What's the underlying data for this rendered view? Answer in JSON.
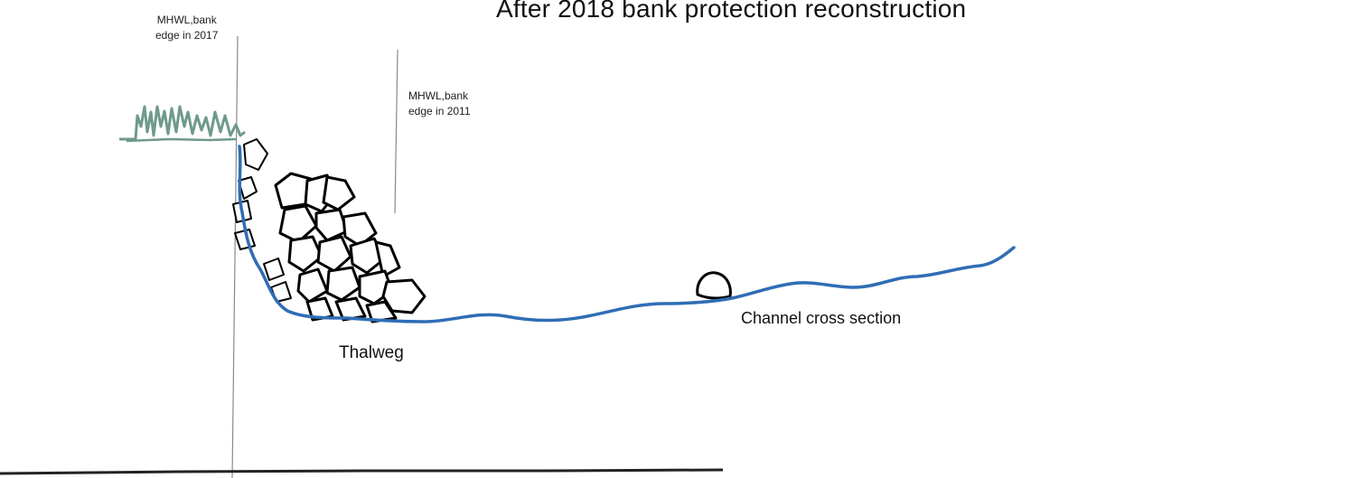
{
  "title": "After 2018 bank protection reconstruction",
  "labels": {
    "mhwl_2017_line1": "MHWL,bank",
    "mhwl_2017_line2": "edge in 2017",
    "mhwl_2011_line1": "MHWL,bank",
    "mhwl_2011_line2": "edge in 2011",
    "thalweg": "Thalweg",
    "channel_cross_section": "Channel cross section"
  },
  "colors": {
    "channel_profile": "#2f6db5",
    "vegetation": "#6f9a8a",
    "riprap_outline": "#000000",
    "reference_line": "#8a8a8a"
  }
}
